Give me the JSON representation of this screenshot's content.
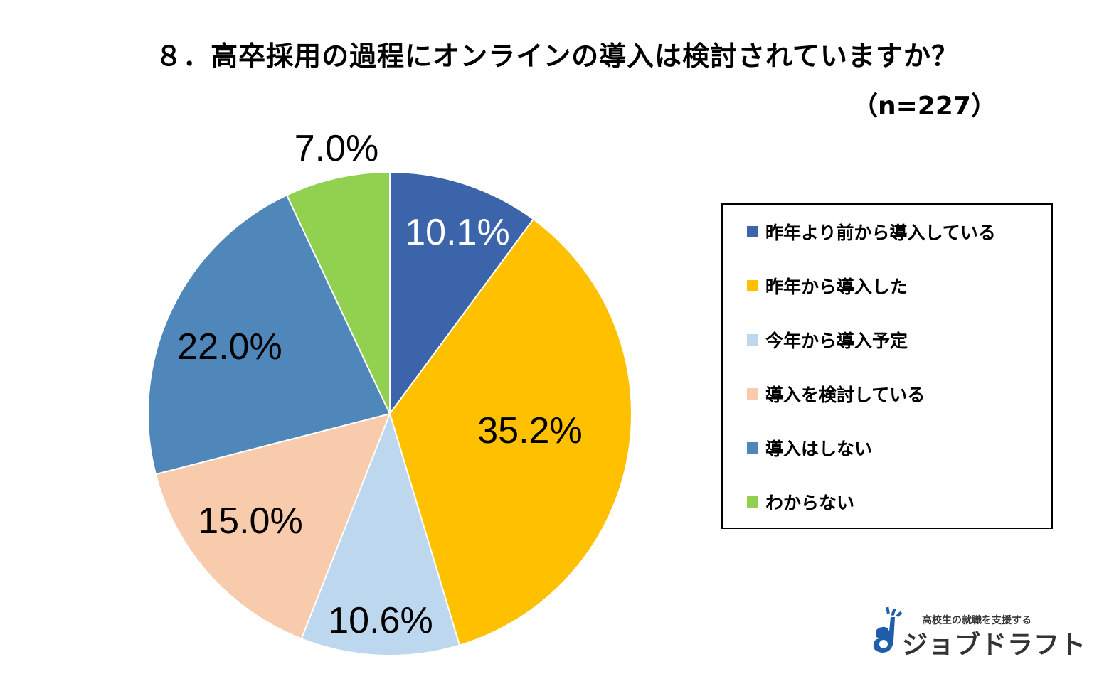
{
  "chart_data": {
    "type": "pie",
    "title": "８．高卒採用の過程にオンラインの導入は検討されていますか？",
    "subtitle": "（n=227）",
    "slices": [
      {
        "label": "昨年より前から導入している",
        "value": 10.1,
        "value_label": "10.1%",
        "color": "#3C64AA",
        "label_color": "#ffffff"
      },
      {
        "label": "昨年から導入した",
        "value": 35.2,
        "value_label": "35.2%",
        "color": "#FFC000",
        "label_color": "#000000"
      },
      {
        "label": "今年から導入予定",
        "value": 10.6,
        "value_label": "10.6%",
        "color": "#BDD7EE",
        "label_color": "#000000"
      },
      {
        "label": "導入を検討している",
        "value": 15.0,
        "value_label": "15.0%",
        "color": "#F8CBAD",
        "label_color": "#000000"
      },
      {
        "label": "導入はしない",
        "value": 22.0,
        "value_label": "22.0%",
        "color": "#4F87BB",
        "label_color": "#000000"
      },
      {
        "label": "わからない",
        "value": 7.0,
        "value_label": "7.0%",
        "color": "#92D050",
        "label_color": "#000000"
      }
    ],
    "legend_position": "right"
  },
  "logo": {
    "tagline": "高校生の就職を支援する",
    "name": "ジョブドラフト",
    "icon": "guitar-note-logo-icon",
    "color": "#1F5DA8"
  }
}
